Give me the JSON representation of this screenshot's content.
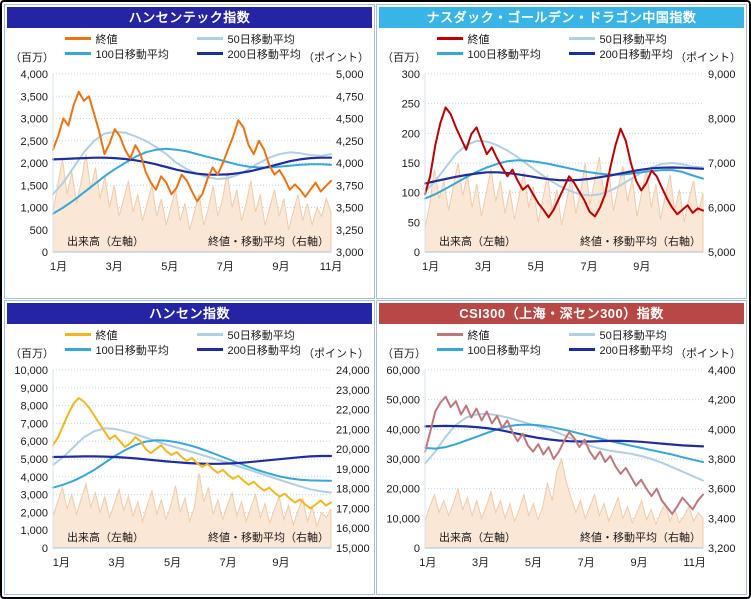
{
  "ui": {
    "left_unit": "（百万）",
    "right_unit": "（ポイント）",
    "volume_annotation": "出来高（左軸）",
    "price_annotation": "終値・移動平均（右軸）",
    "legend": {
      "close": "終値",
      "ma50": "50日移動平均",
      "ma100": "100日移動平均",
      "ma200": "200日移動平均"
    },
    "colors": {
      "ma50": "#AFCFE4",
      "ma100": "#35A7DC",
      "ma200": "#1F2DA2",
      "volume_fill": "#FBE7D5",
      "volume_stroke": "#F0CBA8",
      "grid": "#B9D5EC",
      "axis": "#9CC3E6",
      "panel_border": "#A3C0DC",
      "text": "#1A1A1A"
    }
  },
  "chart_data": [
    {
      "type": "line",
      "title": "ハンセンテック指数",
      "title_bg": "#2424A5",
      "colors": {
        "close": "#F0720E"
      },
      "legend_position": "top",
      "grid": true,
      "left_axis": {
        "min": 0,
        "max": 4000,
        "labels": [
          "4,000",
          "3,500",
          "3,000",
          "2,500",
          "2,000",
          "1,500",
          "1,000",
          "500",
          "0"
        ]
      },
      "right_axis": {
        "min": 3000,
        "max": 5000,
        "labels": [
          "5,000",
          "4,750",
          "4,500",
          "4,250",
          "4,000",
          "3,750",
          "3,500",
          "3,250",
          "3,000"
        ]
      },
      "months": [
        "1月",
        "3月",
        "5月",
        "7月",
        "9月",
        "11月"
      ],
      "month_fracs": [
        0.02,
        0.22,
        0.42,
        0.62,
        0.82,
        1.0
      ],
      "series": {
        "close": [
          4150,
          4300,
          4500,
          4420,
          4650,
          4800,
          4700,
          4750,
          4550,
          4350,
          4100,
          4220,
          4380,
          4300,
          4150,
          4050,
          4200,
          4100,
          3900,
          3780,
          3700,
          3850,
          3780,
          3650,
          3720,
          3870,
          3800,
          3680,
          3570,
          3650,
          3820,
          3950,
          3870,
          4000,
          4150,
          4300,
          4480,
          4400,
          4200,
          4100,
          4250,
          4150,
          3980,
          3870,
          3920,
          3820,
          3700,
          3760,
          3700,
          3620,
          3700,
          3780,
          3680,
          3740,
          3800
        ],
        "ma50": [
          3650,
          3780,
          3950,
          4120,
          4250,
          4330,
          4350,
          4340,
          4300,
          4250,
          4180,
          4100,
          4000,
          3930,
          3880,
          3840,
          3820,
          3830,
          3870,
          3930,
          4000,
          4060,
          4100,
          4120,
          4110,
          4090,
          4080,
          4100
        ],
        "ma100": [
          3430,
          3500,
          3580,
          3670,
          3760,
          3850,
          3930,
          4000,
          4070,
          4120,
          4150,
          4160,
          4150,
          4130,
          4100,
          4070,
          4040,
          4010,
          3980,
          3960,
          3950,
          3950,
          3960,
          3970,
          3980,
          3985,
          3985,
          3980
        ],
        "ma200": [
          4040,
          4045,
          4050,
          4055,
          4060,
          4060,
          4055,
          4045,
          4030,
          4010,
          3985,
          3955,
          3925,
          3900,
          3880,
          3870,
          3868,
          3872,
          3885,
          3905,
          3930,
          3960,
          3990,
          4020,
          4040,
          4055,
          4060,
          4060
        ],
        "volume": [
          900,
          1500,
          2100,
          1300,
          1800,
          1100,
          1600,
          2200,
          1400,
          1900,
          1200,
          1700,
          1000,
          1500,
          800,
          1200,
          1600,
          900,
          1300,
          700,
          1100,
          1500,
          800,
          1200,
          600,
          1000,
          1400,
          700,
          1100,
          500,
          900,
          1300,
          600,
          1000,
          1500,
          800,
          1200,
          1800,
          1000,
          1400,
          700,
          1100,
          1600,
          900,
          1300,
          600,
          1000,
          1400,
          800,
          1200,
          500,
          900,
          1300,
          700,
          1100,
          600,
          1000,
          800,
          1200,
          900
        ]
      }
    },
    {
      "type": "line",
      "title": "ナスダック・ゴールデン・ドラゴン中国指数",
      "title_bg": "#38B5E6",
      "colors": {
        "close": "#C00000"
      },
      "legend_position": "top",
      "grid": true,
      "left_axis": {
        "min": 0,
        "max": 300,
        "labels": [
          "300",
          "250",
          "200",
          "150",
          "100",
          "50",
          "0"
        ]
      },
      "right_axis": {
        "min": 5000,
        "max": 9000,
        "labels": [
          "9,000",
          "8,000",
          "7,000",
          "6,000",
          "5,000"
        ]
      },
      "months": [
        "1月",
        "3月",
        "5月",
        "7月",
        "9月"
      ],
      "month_fracs": [
        0.02,
        0.21,
        0.4,
        0.59,
        0.78
      ],
      "series": {
        "close": [
          6300,
          6700,
          7400,
          7900,
          8250,
          8100,
          7800,
          7550,
          7300,
          7650,
          7800,
          7500,
          7200,
          7350,
          7100,
          6900,
          6700,
          6850,
          6600,
          6400,
          6500,
          6300,
          6100,
          5950,
          5780,
          5950,
          6200,
          6450,
          6700,
          6550,
          6350,
          6150,
          5900,
          5800,
          6000,
          6300,
          6900,
          7400,
          7770,
          7500,
          7000,
          6600,
          6385,
          6550,
          6830,
          6700,
          6450,
          6200,
          6000,
          5850,
          5950,
          6050,
          5880,
          5980,
          5930
        ],
        "ma50": [
          6350,
          6600,
          6900,
          7200,
          7400,
          7500,
          7480,
          7400,
          7280,
          7130,
          6960,
          6790,
          6630,
          6490,
          6380,
          6300,
          6270,
          6300,
          6380,
          6500,
          6640,
          6780,
          6900,
          6980,
          7000,
          6970,
          6920,
          6900
        ],
        "ma100": [
          6200,
          6300,
          6420,
          6550,
          6680,
          6800,
          6900,
          6980,
          7040,
          7060,
          7050,
          7020,
          6980,
          6930,
          6880,
          6830,
          6790,
          6760,
          6740,
          6740,
          6760,
          6790,
          6820,
          6840,
          6840,
          6800,
          6720,
          6650
        ],
        "ma200": [
          6540,
          6590,
          6640,
          6690,
          6730,
          6765,
          6790,
          6790,
          6775,
          6745,
          6710,
          6670,
          6635,
          6615,
          6610,
          6620,
          6645,
          6680,
          6720,
          6765,
          6810,
          6850,
          6880,
          6895,
          6900,
          6895,
          6880,
          6870
        ],
        "volume": [
          40,
          80,
          140,
          90,
          120,
          70,
          110,
          150,
          95,
          130,
          75,
          115,
          60,
          100,
          140,
          85,
          120,
          65,
          105,
          55,
          95,
          135,
          75,
          110,
          50,
          90,
          130,
          70,
          105,
          45,
          85,
          125,
          65,
          100,
          150,
          80,
          120,
          160,
          95,
          135,
          70,
          110,
          145,
          85,
          125,
          60,
          100,
          140,
          75,
          115,
          55,
          95,
          130,
          70,
          105,
          50,
          90,
          120,
          65,
          100
        ]
      }
    },
    {
      "type": "line",
      "title": "ハンセン指数",
      "title_bg": "#2424A5",
      "colors": {
        "close": "#F3B71B"
      },
      "legend_position": "top",
      "grid": true,
      "left_axis": {
        "min": 0,
        "max": 10000,
        "labels": [
          "10,000",
          "9,000",
          "8,000",
          "7,000",
          "6,000",
          "5,000",
          "4,000",
          "3,000",
          "2,000",
          "1,000",
          "0"
        ]
      },
      "right_axis": {
        "min": 15000,
        "max": 24000,
        "labels": [
          "24,000",
          "23,000",
          "22,000",
          "21,000",
          "20,000",
          "19,000",
          "18,000",
          "17,000",
          "16,000",
          "15,000"
        ]
      },
      "months": [
        "1月",
        "3月",
        "5月",
        "7月",
        "9月"
      ],
      "month_fracs": [
        0.03,
        0.23,
        0.43,
        0.63,
        0.82
      ],
      "series": {
        "close": [
          20200,
          20600,
          21200,
          21800,
          22300,
          22580,
          22400,
          22100,
          21700,
          21300,
          20900,
          20500,
          20700,
          20400,
          20100,
          20300,
          20600,
          20400,
          20000,
          19800,
          20000,
          20200,
          19900,
          19700,
          19850,
          19600,
          19400,
          19550,
          19300,
          19100,
          19250,
          19000,
          18800,
          18950,
          18700,
          18500,
          18650,
          18400,
          18200,
          18350,
          18100,
          17900,
          18050,
          17800,
          17600,
          17750,
          17500,
          17300,
          17450,
          17200,
          17000,
          17200,
          17400,
          17150,
          17300
        ],
        "ma50": [
          19200,
          19600,
          20100,
          20600,
          20900,
          21050,
          21020,
          20900,
          20750,
          20580,
          20400,
          20230,
          20080,
          19930,
          19780,
          19620,
          19460,
          19300,
          19130,
          18960,
          18790,
          18620,
          18450,
          18280,
          18120,
          17970,
          17870,
          17800
        ],
        "ma100": [
          18050,
          18200,
          18400,
          18650,
          18950,
          19300,
          19650,
          19950,
          20200,
          20380,
          20450,
          20430,
          20350,
          20230,
          20080,
          19900,
          19700,
          19500,
          19300,
          19100,
          18920,
          18760,
          18620,
          18520,
          18450,
          18420,
          18410,
          18400
        ],
        "ma200": [
          19600,
          19610,
          19620,
          19630,
          19630,
          19620,
          19600,
          19570,
          19530,
          19480,
          19430,
          19380,
          19340,
          19300,
          19270,
          19255,
          19255,
          19270,
          19300,
          19340,
          19390,
          19440,
          19490,
          19540,
          19590,
          19630,
          19650,
          19650
        ],
        "volume": [
          1800,
          2600,
          3400,
          2200,
          3000,
          1900,
          2800,
          3600,
          2300,
          3100,
          2000,
          2900,
          1700,
          2500,
          3300,
          2100,
          2900,
          1800,
          2600,
          1500,
          2400,
          3200,
          1900,
          2700,
          1600,
          2400,
          3500,
          2000,
          2800,
          1500,
          2300,
          4200,
          2600,
          3400,
          1900,
          2700,
          1600,
          2400,
          3100,
          1800,
          2600,
          1500,
          2300,
          3000,
          1700,
          2500,
          1400,
          2200,
          2900,
          1600,
          2400,
          1300,
          2100,
          2800,
          1500,
          2300,
          1200,
          2000,
          1700,
          2200
        ]
      }
    },
    {
      "type": "line",
      "title": "CSI300（上海・深セン300）指数",
      "title_bg": "#B74845",
      "colors": {
        "close": "#C0777C"
      },
      "legend_position": "top",
      "grid": true,
      "left_axis": {
        "min": 0,
        "max": 60000,
        "labels": [
          "60,000",
          "50,000",
          "40,000",
          "30,000",
          "20,000",
          "10,000",
          "0"
        ]
      },
      "right_axis": {
        "min": 3200,
        "max": 4400,
        "labels": [
          "4,400",
          "4,200",
          "4,000",
          "3,800",
          "3,600",
          "3,400",
          "3,200"
        ]
      },
      "months": [
        "1月",
        "3月",
        "5月",
        "7月",
        "9月",
        "11月"
      ],
      "month_fracs": [
        0.01,
        0.2,
        0.39,
        0.58,
        0.77,
        0.97
      ],
      "series": {
        "close": [
          3850,
          3980,
          4120,
          4180,
          4220,
          4150,
          4190,
          4100,
          4160,
          4080,
          4140,
          4060,
          4120,
          4040,
          4090,
          4010,
          4060,
          3980,
          3920,
          3970,
          3890,
          3850,
          3900,
          3830,
          3880,
          3800,
          3850,
          3920,
          3980,
          3940,
          3880,
          3930,
          3850,
          3800,
          3850,
          3780,
          3820,
          3750,
          3700,
          3740,
          3680,
          3620,
          3660,
          3600,
          3550,
          3600,
          3520,
          3475,
          3430,
          3480,
          3540,
          3500,
          3460,
          3520,
          3560
        ],
        "ma50": [
          3770,
          3850,
          3950,
          4030,
          4080,
          4100,
          4105,
          4095,
          4080,
          4060,
          4040,
          4020,
          4000,
          3975,
          3945,
          3915,
          3890,
          3870,
          3855,
          3845,
          3835,
          3820,
          3800,
          3775,
          3745,
          3715,
          3685,
          3655
        ],
        "ma100": [
          3875,
          3870,
          3880,
          3900,
          3925,
          3950,
          3975,
          4000,
          4020,
          4030,
          4032,
          4028,
          4018,
          4005,
          3990,
          3972,
          3955,
          3938,
          3920,
          3905,
          3890,
          3875,
          3860,
          3845,
          3830,
          3812,
          3795,
          3780
        ],
        "ma200": [
          4020,
          4022,
          4023,
          4022,
          4020,
          4015,
          4008,
          3998,
          3985,
          3970,
          3955,
          3942,
          3932,
          3925,
          3920,
          3918,
          3918,
          3920,
          3922,
          3922,
          3920,
          3916,
          3910,
          3904,
          3898,
          3892,
          3888,
          3885
        ],
        "volume": [
          9000,
          14000,
          18000,
          12000,
          16000,
          11000,
          15000,
          20000,
          13000,
          17000,
          11000,
          16000,
          10000,
          14000,
          19000,
          12000,
          16000,
          10000,
          15000,
          9000,
          13000,
          18000,
          11000,
          15000,
          9500,
          14000,
          22000,
          16000,
          26000,
          30000,
          22000,
          17000,
          12000,
          16000,
          10000,
          14000,
          18000,
          11000,
          15000,
          9000,
          13000,
          17000,
          10000,
          14000,
          8500,
          12000,
          16000,
          9500,
          13000,
          8000,
          12000,
          15000,
          9000,
          13000,
          8500,
          11000,
          14000,
          9000,
          12000,
          10000
        ]
      }
    }
  ]
}
